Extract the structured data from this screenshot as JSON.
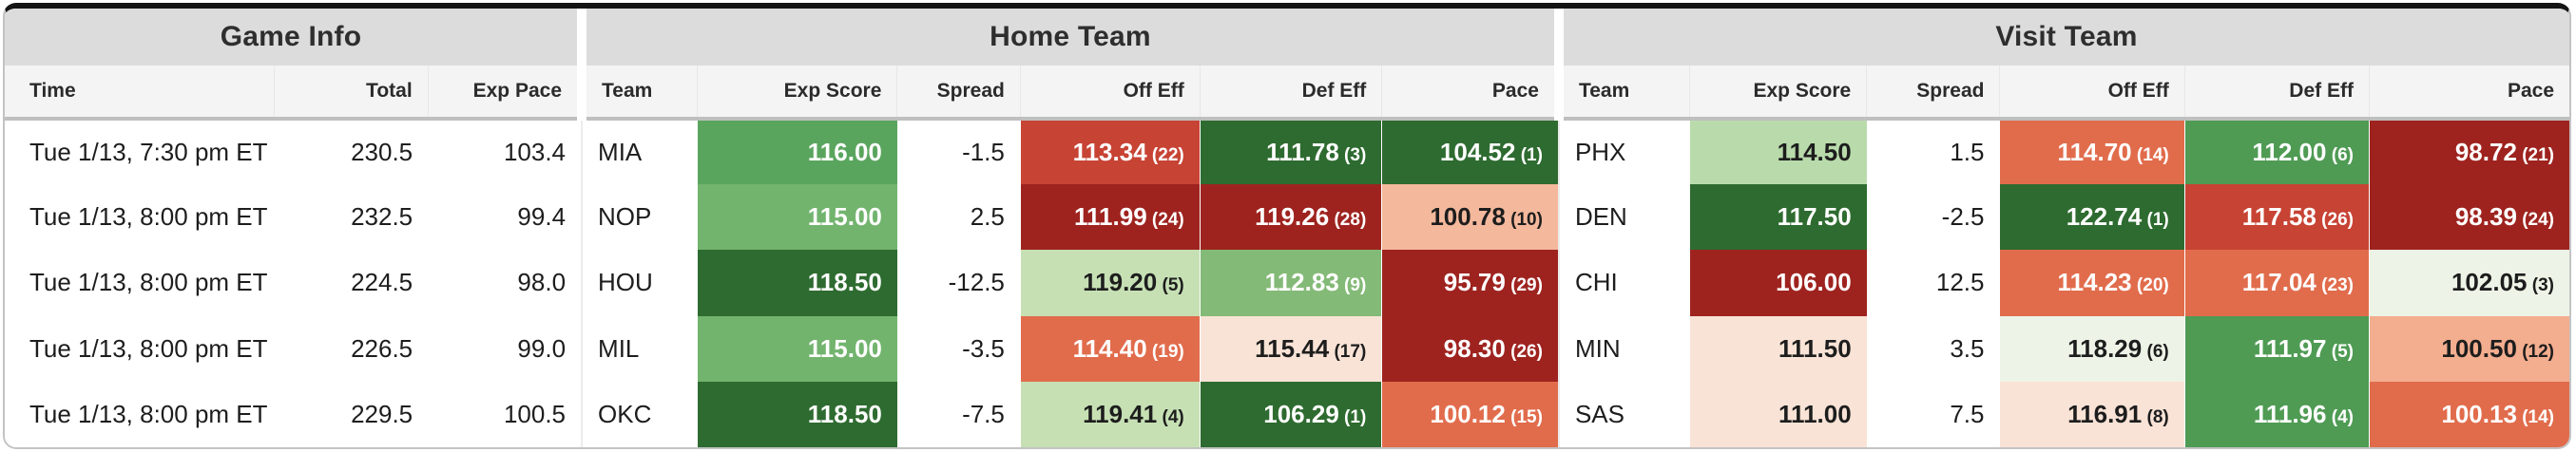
{
  "table": {
    "groups": [
      {
        "label": "Game Info"
      },
      {
        "label": "Home Team"
      },
      {
        "label": "Visit Team"
      }
    ],
    "columns": [
      "Time",
      "Total",
      "Exp Pace",
      "Team",
      "Exp Score",
      "Spread",
      "Off Eff",
      "Def Eff",
      "Pace",
      "Team",
      "Exp Score",
      "Spread",
      "Off Eff",
      "Def Eff",
      "Pace"
    ],
    "rows": [
      {
        "time": "Tue 1/13, 7:30 pm ET",
        "total": "230.5",
        "exp_pace": "103.4",
        "home": {
          "team": "MIA",
          "exp_score": {
            "value": "116.00",
            "bg": "#5aa55e",
            "fg": "#ffffff"
          },
          "spread": "-1.5",
          "off_eff": {
            "value": "113.34",
            "rank": "(22)",
            "bg": "#c74334",
            "fg": "#ffffff"
          },
          "def_eff": {
            "value": "111.78",
            "rank": "(3)",
            "bg": "#2e6b30",
            "fg": "#ffffff"
          },
          "pace": {
            "value": "104.52",
            "rank": "(1)",
            "bg": "#2e6b30",
            "fg": "#ffffff"
          }
        },
        "visit": {
          "team": "PHX",
          "exp_score": {
            "value": "114.50",
            "bg": "#b9dbac",
            "fg": "#1d1d1d"
          },
          "spread": "1.5",
          "off_eff": {
            "value": "114.70",
            "rank": "(14)",
            "bg": "#e16c4c",
            "fg": "#ffffff"
          },
          "def_eff": {
            "value": "112.00",
            "rank": "(6)",
            "bg": "#4f9b54",
            "fg": "#ffffff"
          },
          "pace": {
            "value": "98.72",
            "rank": "(21)",
            "bg": "#9e231f",
            "fg": "#ffffff"
          }
        }
      },
      {
        "time": "Tue 1/13, 8:00 pm ET",
        "total": "232.5",
        "exp_pace": "99.4",
        "home": {
          "team": "NOP",
          "exp_score": {
            "value": "115.00",
            "bg": "#72b46e",
            "fg": "#ffffff"
          },
          "spread": "2.5",
          "off_eff": {
            "value": "111.99",
            "rank": "(24)",
            "bg": "#9e231f",
            "fg": "#ffffff"
          },
          "def_eff": {
            "value": "119.26",
            "rank": "(28)",
            "bg": "#9e231f",
            "fg": "#ffffff"
          },
          "pace": {
            "value": "100.78",
            "rank": "(10)",
            "bg": "#f4b89c",
            "fg": "#1d1d1d"
          }
        },
        "visit": {
          "team": "DEN",
          "exp_score": {
            "value": "117.50",
            "bg": "#2e6b30",
            "fg": "#ffffff"
          },
          "spread": "-2.5",
          "off_eff": {
            "value": "122.74",
            "rank": "(1)",
            "bg": "#2e6b30",
            "fg": "#ffffff"
          },
          "def_eff": {
            "value": "117.58",
            "rank": "(26)",
            "bg": "#c74334",
            "fg": "#ffffff"
          },
          "pace": {
            "value": "98.39",
            "rank": "(24)",
            "bg": "#9e231f",
            "fg": "#ffffff"
          }
        }
      },
      {
        "time": "Tue 1/13, 8:00 pm ET",
        "total": "224.5",
        "exp_pace": "98.0",
        "home": {
          "team": "HOU",
          "exp_score": {
            "value": "118.50",
            "bg": "#2e6b30",
            "fg": "#ffffff"
          },
          "spread": "-12.5",
          "off_eff": {
            "value": "119.20",
            "rank": "(5)",
            "bg": "#c6e0b4",
            "fg": "#1d1d1d"
          },
          "def_eff": {
            "value": "112.83",
            "rank": "(9)",
            "bg": "#84ba77",
            "fg": "#ffffff"
          },
          "pace": {
            "value": "95.79",
            "rank": "(29)",
            "bg": "#9e231f",
            "fg": "#ffffff"
          }
        },
        "visit": {
          "team": "CHI",
          "exp_score": {
            "value": "106.00",
            "bg": "#9e231f",
            "fg": "#ffffff"
          },
          "spread": "12.5",
          "off_eff": {
            "value": "114.23",
            "rank": "(20)",
            "bg": "#e16c4c",
            "fg": "#ffffff"
          },
          "def_eff": {
            "value": "117.04",
            "rank": "(23)",
            "bg": "#e16c4c",
            "fg": "#ffffff"
          },
          "pace": {
            "value": "102.05",
            "rank": "(3)",
            "bg": "#edf4e7",
            "fg": "#1d1d1d"
          }
        }
      },
      {
        "time": "Tue 1/13, 8:00 pm ET",
        "total": "226.5",
        "exp_pace": "99.0",
        "home": {
          "team": "MIL",
          "exp_score": {
            "value": "115.00",
            "bg": "#72b46e",
            "fg": "#ffffff"
          },
          "spread": "-3.5",
          "off_eff": {
            "value": "114.40",
            "rank": "(19)",
            "bg": "#e16c4c",
            "fg": "#ffffff"
          },
          "def_eff": {
            "value": "115.44",
            "rank": "(17)",
            "bg": "#f9e3d6",
            "fg": "#1d1d1d"
          },
          "pace": {
            "value": "98.30",
            "rank": "(26)",
            "bg": "#9e231f",
            "fg": "#ffffff"
          }
        },
        "visit": {
          "team": "MIN",
          "exp_score": {
            "value": "111.50",
            "bg": "#f9e3d6",
            "fg": "#1d1d1d"
          },
          "spread": "3.5",
          "off_eff": {
            "value": "118.29",
            "rank": "(6)",
            "bg": "#edf4e7",
            "fg": "#1d1d1d"
          },
          "def_eff": {
            "value": "111.97",
            "rank": "(5)",
            "bg": "#4f9b54",
            "fg": "#ffffff"
          },
          "pace": {
            "value": "100.50",
            "rank": "(12)",
            "bg": "#f3ad8f",
            "fg": "#1d1d1d"
          }
        }
      },
      {
        "time": "Tue 1/13, 8:00 pm ET",
        "total": "229.5",
        "exp_pace": "100.5",
        "home": {
          "team": "OKC",
          "exp_score": {
            "value": "118.50",
            "bg": "#2e6b30",
            "fg": "#ffffff"
          },
          "spread": "-7.5",
          "off_eff": {
            "value": "119.41",
            "rank": "(4)",
            "bg": "#c6e0b4",
            "fg": "#1d1d1d"
          },
          "def_eff": {
            "value": "106.29",
            "rank": "(1)",
            "bg": "#2e6b30",
            "fg": "#ffffff"
          },
          "pace": {
            "value": "100.12",
            "rank": "(15)",
            "bg": "#e16c4c",
            "fg": "#ffffff"
          }
        },
        "visit": {
          "team": "SAS",
          "exp_score": {
            "value": "111.00",
            "bg": "#f9e3d6",
            "fg": "#1d1d1d"
          },
          "spread": "7.5",
          "off_eff": {
            "value": "116.91",
            "rank": "(8)",
            "bg": "#f9e3d6",
            "fg": "#1d1d1d"
          },
          "def_eff": {
            "value": "111.96",
            "rank": "(4)",
            "bg": "#4f9b54",
            "fg": "#ffffff"
          },
          "pace": {
            "value": "100.13",
            "rank": "(14)",
            "bg": "#e16c4c",
            "fg": "#ffffff"
          }
        }
      }
    ]
  },
  "colors": {
    "group_header_bg": "#dcdcdc",
    "column_header_bg": "#f4f4f4",
    "heat_green_dark": "#2e6b30",
    "heat_green_mid": "#4f9b54",
    "heat_green_light": "#c6e0b4",
    "heat_red_dark": "#9e231f",
    "heat_red_mid": "#c74334",
    "heat_orange": "#e16c4c",
    "heat_pink_pale": "#f9e3d6"
  }
}
